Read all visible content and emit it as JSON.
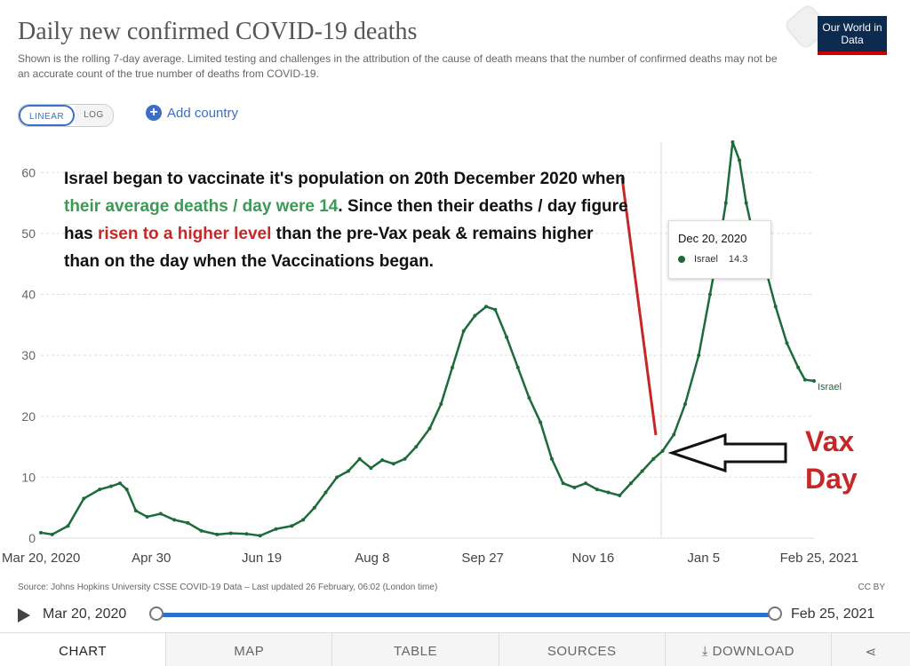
{
  "header": {
    "title": "Daily new confirmed COVID-19 deaths",
    "subtitle": "Shown is the rolling 7-day average. Limited testing and challenges in the attribution of the cause of death means that the number of confirmed deaths may not be an accurate count of the true number of deaths from COVID-19.",
    "logo_text": "Our World in Data"
  },
  "controls": {
    "linear_label": "LINEAR",
    "log_label": "LOG",
    "add_country_label": "Add country"
  },
  "annotation": {
    "part1": "Israel began to vaccinate it's population on 20th December 2020 when ",
    "green": "their average deaths / day were 14",
    "part2": ". Since then their deaths / day figure has ",
    "red": "risen to a higher level",
    "part3": " than the pre-Vax peak & remains higher than on the day when the Vaccinations began."
  },
  "vax_label": {
    "line1": "Vax",
    "line2": "Day"
  },
  "tooltip": {
    "date": "Dec 20, 2020",
    "series": "Israel",
    "value": "14.3"
  },
  "chart_data": {
    "type": "line",
    "title": "Daily new confirmed COVID-19 deaths",
    "xlabel": "",
    "ylabel": "",
    "ylim": [
      0,
      65
    ],
    "yticks": [
      0,
      10,
      20,
      30,
      40,
      50,
      60
    ],
    "xticks": [
      "Mar 20, 2020",
      "Apr 30",
      "Jun 19",
      "Aug 8",
      "Sep 27",
      "Nov 16",
      "Jan 5",
      "Feb 25, 2021"
    ],
    "grid": true,
    "series": [
      {
        "name": "Israel",
        "color": "#1d6b3a",
        "points": [
          [
            "2020-03-20",
            0.9
          ],
          [
            "2020-03-25",
            0.6
          ],
          [
            "2020-04-01",
            2.0
          ],
          [
            "2020-04-08",
            6.5
          ],
          [
            "2020-04-15",
            8.0
          ],
          [
            "2020-04-20",
            8.5
          ],
          [
            "2020-04-24",
            9.0
          ],
          [
            "2020-04-27",
            8.0
          ],
          [
            "2020-05-01",
            4.5
          ],
          [
            "2020-05-06",
            3.5
          ],
          [
            "2020-05-12",
            4.0
          ],
          [
            "2020-05-18",
            3.0
          ],
          [
            "2020-05-24",
            2.5
          ],
          [
            "2020-05-30",
            1.2
          ],
          [
            "2020-06-06",
            0.6
          ],
          [
            "2020-06-12",
            0.8
          ],
          [
            "2020-06-19",
            0.7
          ],
          [
            "2020-06-25",
            0.4
          ],
          [
            "2020-07-02",
            1.5
          ],
          [
            "2020-07-09",
            2.0
          ],
          [
            "2020-07-14",
            3.0
          ],
          [
            "2020-07-19",
            5.0
          ],
          [
            "2020-07-24",
            7.5
          ],
          [
            "2020-07-29",
            10.0
          ],
          [
            "2020-08-03",
            11.0
          ],
          [
            "2020-08-08",
            13.0
          ],
          [
            "2020-08-13",
            11.5
          ],
          [
            "2020-08-18",
            12.8
          ],
          [
            "2020-08-23",
            12.2
          ],
          [
            "2020-08-28",
            13.0
          ],
          [
            "2020-09-02",
            15.0
          ],
          [
            "2020-09-08",
            18.0
          ],
          [
            "2020-09-13",
            22.0
          ],
          [
            "2020-09-18",
            28.0
          ],
          [
            "2020-09-23",
            34.0
          ],
          [
            "2020-09-28",
            36.5
          ],
          [
            "2020-10-03",
            38.0
          ],
          [
            "2020-10-07",
            37.5
          ],
          [
            "2020-10-12",
            33.0
          ],
          [
            "2020-10-17",
            28.0
          ],
          [
            "2020-10-22",
            23.0
          ],
          [
            "2020-10-27",
            19.0
          ],
          [
            "2020-11-01",
            13.0
          ],
          [
            "2020-11-06",
            9.0
          ],
          [
            "2020-11-11",
            8.3
          ],
          [
            "2020-11-16",
            9.0
          ],
          [
            "2020-11-21",
            8.0
          ],
          [
            "2020-11-26",
            7.5
          ],
          [
            "2020-12-01",
            7.0
          ],
          [
            "2020-12-06",
            9.0
          ],
          [
            "2020-12-11",
            11.0
          ],
          [
            "2020-12-16",
            13.0
          ],
          [
            "2020-12-20",
            14.3
          ],
          [
            "2020-12-25",
            17.0
          ],
          [
            "2020-12-30",
            22.0
          ],
          [
            "2021-01-05",
            30.0
          ],
          [
            "2021-01-10",
            40.0
          ],
          [
            "2021-01-14",
            48.0
          ],
          [
            "2021-01-17",
            55.0
          ],
          [
            "2021-01-20",
            65.0
          ],
          [
            "2021-01-23",
            62.0
          ],
          [
            "2021-01-26",
            55.0
          ],
          [
            "2021-01-29",
            50.0
          ],
          [
            "2021-02-03",
            45.0
          ],
          [
            "2021-02-08",
            38.0
          ],
          [
            "2021-02-13",
            32.0
          ],
          [
            "2021-02-18",
            28.0
          ],
          [
            "2021-02-21",
            26.0
          ],
          [
            "2021-02-25",
            25.8
          ]
        ]
      }
    ],
    "end_label": "Israel",
    "annotations": [
      "Vax Day"
    ]
  },
  "source": {
    "text": "Source: Johns Hopkins University CSSE COVID-19 Data – Last updated 26 February, 06:02 (London time)",
    "license": "CC BY"
  },
  "timeline": {
    "start": "Mar 20, 2020",
    "end": "Feb 25, 2021"
  },
  "tabs": [
    "CHART",
    "MAP",
    "TABLE",
    "SOURCES",
    "DOWNLOAD"
  ]
}
